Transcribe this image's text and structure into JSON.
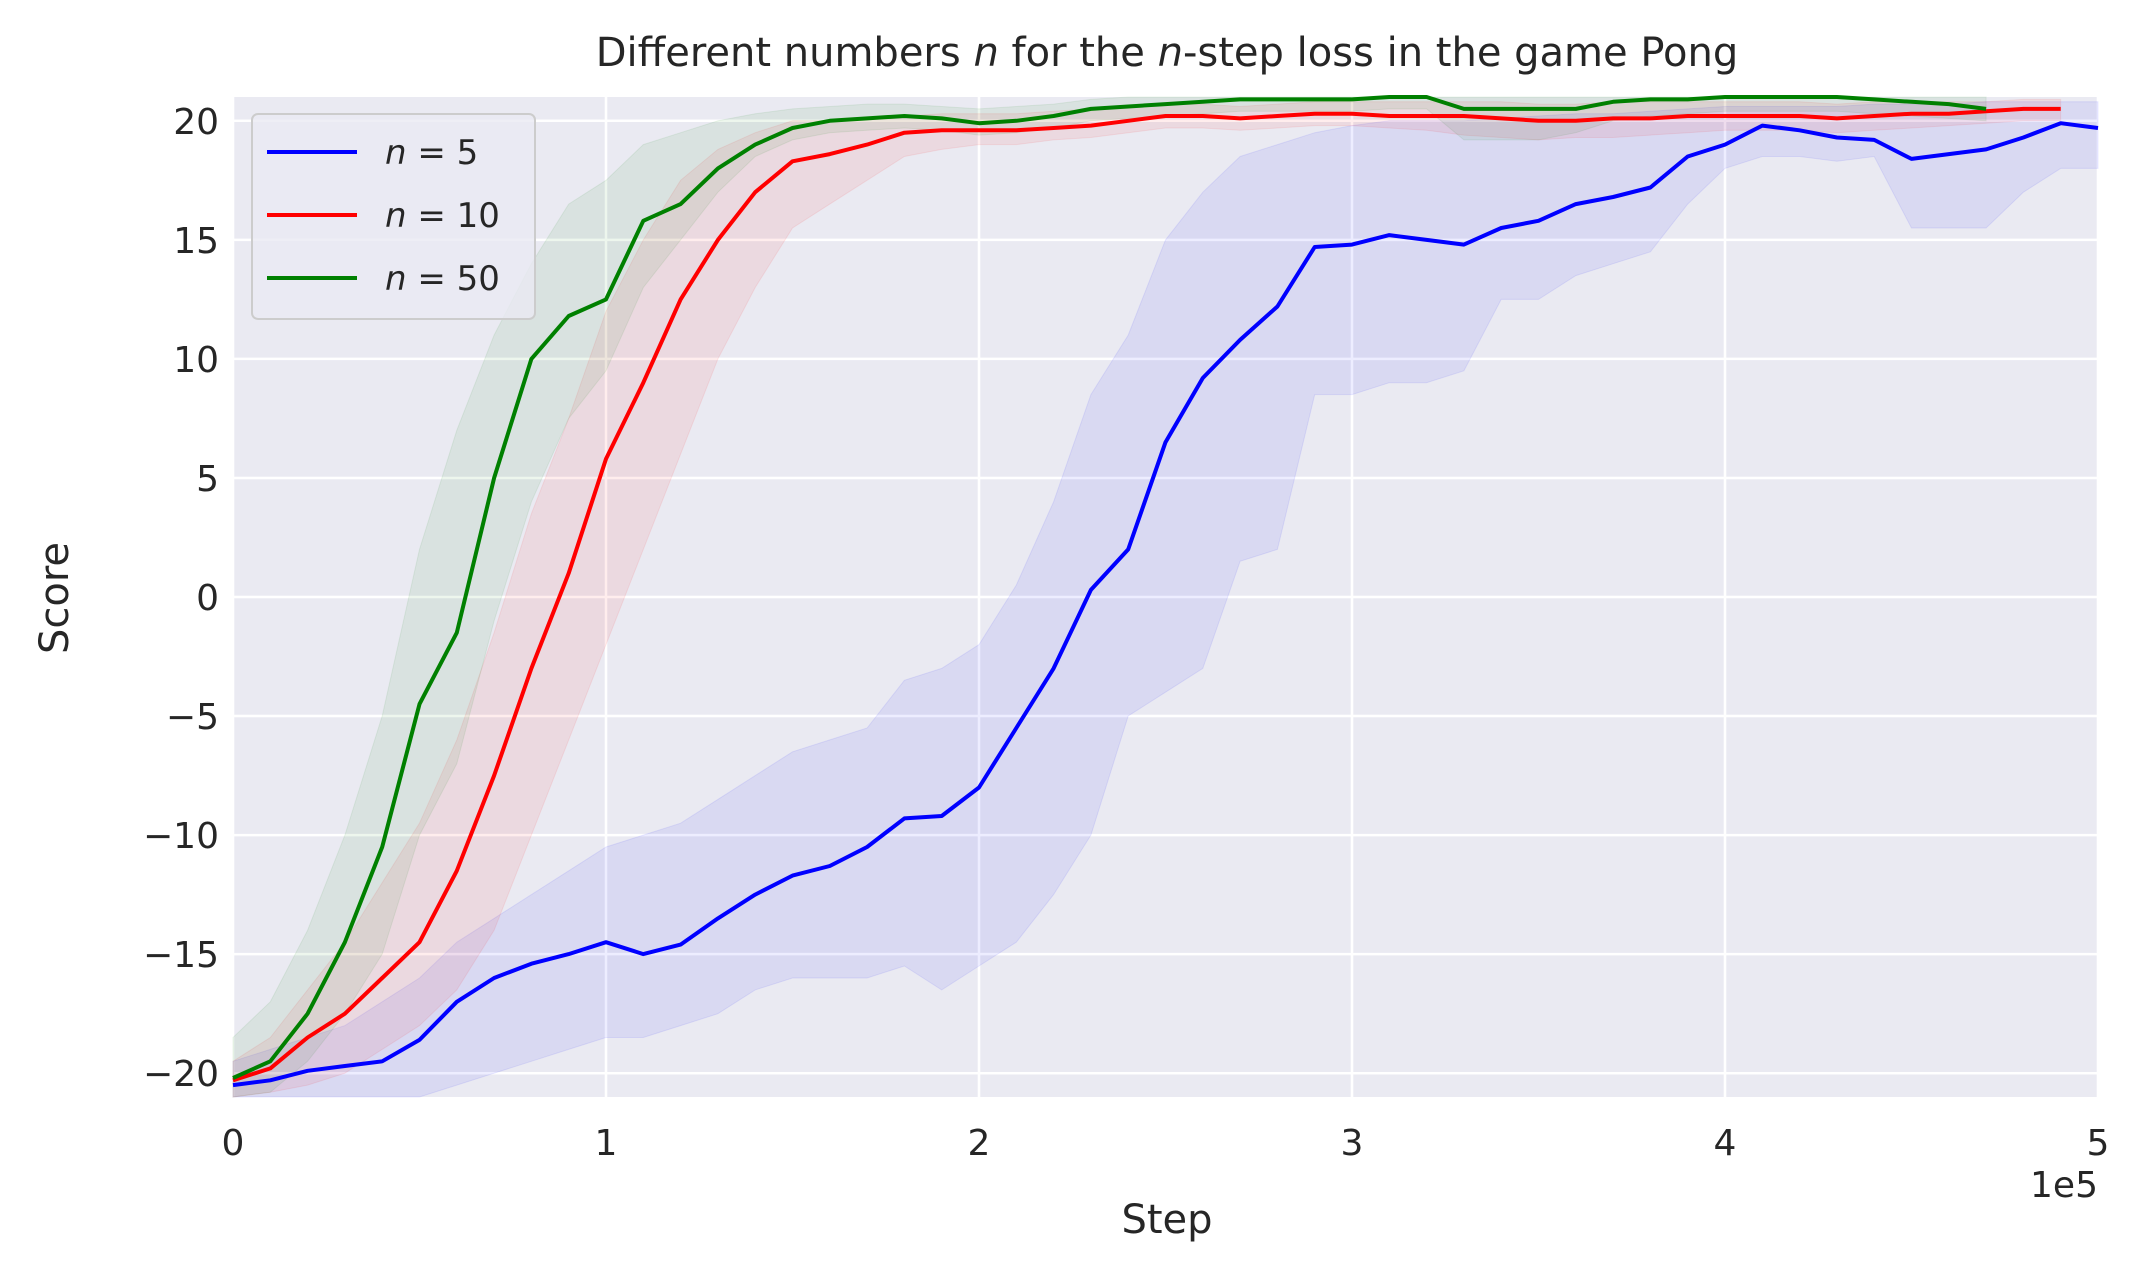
{
  "chart_data": {
    "type": "line",
    "title_parts": [
      {
        "text": "Different numbers ",
        "italic": false
      },
      {
        "text": "n",
        "italic": true
      },
      {
        "text": " for the ",
        "italic": false
      },
      {
        "text": "n",
        "italic": true
      },
      {
        "text": "-step loss in the game Pong",
        "italic": false
      }
    ],
    "xlabel": "Step",
    "ylabel": "Score",
    "x_offset_text": "1e5",
    "xlim": [
      0,
      500000
    ],
    "ylim": [
      -21,
      21
    ],
    "x_ticks": [
      0,
      100000,
      200000,
      300000,
      400000,
      500000
    ],
    "x_tick_labels": [
      "0",
      "1",
      "2",
      "3",
      "4",
      "5"
    ],
    "y_ticks": [
      -20,
      -15,
      -10,
      -5,
      0,
      5,
      10,
      15,
      20
    ],
    "y_tick_labels": [
      "−20",
      "−15",
      "−10",
      "−5",
      "0",
      "5",
      "10",
      "15",
      "20"
    ],
    "grid": true,
    "legend_position": "upper-left",
    "colors": {
      "plot_background": "#eaeaf2",
      "grid": "#ffffff",
      "n5": "#0000ff",
      "n10": "#ff0000",
      "n50": "#008000"
    },
    "series": [
      {
        "name": "n = 5",
        "name_parts": [
          {
            "text": "n",
            "italic": true
          },
          {
            "text": " = 5",
            "italic": false
          }
        ],
        "color": "#0000ff",
        "x": [
          0,
          10000,
          20000,
          30000,
          40000,
          50000,
          60000,
          70000,
          80000,
          90000,
          100000,
          110000,
          120000,
          130000,
          140000,
          150000,
          160000,
          170000,
          180000,
          190000,
          200000,
          210000,
          220000,
          230000,
          240000,
          250000,
          260000,
          270000,
          280000,
          290000,
          300000,
          310000,
          320000,
          330000,
          340000,
          350000,
          360000,
          370000,
          380000,
          390000,
          400000,
          410000,
          420000,
          430000,
          440000,
          450000,
          460000,
          470000,
          480000,
          490000,
          500000
        ],
        "y": [
          -20.5,
          -20.3,
          -19.9,
          -19.7,
          -19.5,
          -18.6,
          -17.0,
          -16.0,
          -15.4,
          -15.0,
          -14.5,
          -15.0,
          -14.6,
          -13.5,
          -12.5,
          -11.7,
          -11.3,
          -10.5,
          -9.3,
          -9.2,
          -8.0,
          -5.5,
          -3.0,
          0.3,
          2.0,
          6.5,
          9.2,
          10.8,
          12.2,
          14.7,
          14.8,
          15.2,
          15.0,
          14.8,
          15.5,
          15.8,
          16.5,
          16.8,
          17.2,
          18.5,
          19.0,
          19.8,
          19.6,
          19.3,
          19.2,
          18.4,
          18.6,
          18.8,
          19.3,
          19.9,
          19.7
        ],
        "lower": [
          -21,
          -21,
          -21,
          -21,
          -21,
          -21,
          -20.5,
          -20,
          -19.5,
          -19,
          -18.5,
          -18.5,
          -18,
          -17.5,
          -16.5,
          -16,
          -16,
          -16,
          -15.5,
          -16.5,
          -15.5,
          -14.5,
          -12.5,
          -10,
          -5,
          -4,
          -3,
          1.5,
          2,
          8.5,
          8.5,
          9,
          9,
          9.5,
          12.5,
          12.5,
          13.5,
          14,
          14.5,
          16.5,
          18,
          18.5,
          18.5,
          18.3,
          18.5,
          15.5,
          15.5,
          15.5,
          17,
          18,
          18
        ],
        "upper": [
          -19.5,
          -19,
          -18.5,
          -18,
          -17,
          -16,
          -14.5,
          -13.5,
          -12.5,
          -11.5,
          -10.5,
          -10,
          -9.5,
          -8.5,
          -7.5,
          -6.5,
          -6,
          -5.5,
          -3.5,
          -3,
          -2,
          0.5,
          4,
          8.5,
          11,
          15,
          17,
          18.5,
          19,
          19.5,
          19.8,
          20,
          20,
          20,
          20.1,
          20.2,
          20.3,
          20.3,
          20.4,
          20.5,
          20.6,
          20.6,
          20.6,
          20.6,
          20.7,
          20.7,
          20.7,
          20.8,
          20.8,
          20.8,
          20.8
        ]
      },
      {
        "name": "n = 10",
        "name_parts": [
          {
            "text": "n",
            "italic": true
          },
          {
            "text": " = 10",
            "italic": false
          }
        ],
        "color": "#ff0000",
        "x": [
          0,
          10000,
          20000,
          30000,
          40000,
          50000,
          60000,
          70000,
          80000,
          90000,
          100000,
          110000,
          120000,
          130000,
          140000,
          150000,
          160000,
          170000,
          180000,
          190000,
          200000,
          210000,
          220000,
          230000,
          240000,
          250000,
          260000,
          270000,
          280000,
          290000,
          300000,
          310000,
          320000,
          330000,
          340000,
          350000,
          360000,
          370000,
          380000,
          390000,
          400000,
          410000,
          420000,
          430000,
          440000,
          450000,
          460000,
          470000,
          480000,
          490000
        ],
        "y": [
          -20.3,
          -19.8,
          -18.5,
          -17.5,
          -16.0,
          -14.5,
          -11.5,
          -7.5,
          -3.0,
          1.0,
          5.8,
          9.0,
          12.5,
          15.0,
          17.0,
          18.3,
          18.6,
          19.0,
          19.5,
          19.6,
          19.6,
          19.6,
          19.7,
          19.8,
          20.0,
          20.2,
          20.2,
          20.1,
          20.2,
          20.3,
          20.3,
          20.2,
          20.2,
          20.2,
          20.1,
          20.0,
          20.0,
          20.1,
          20.1,
          20.2,
          20.2,
          20.2,
          20.2,
          20.1,
          20.2,
          20.3,
          20.3,
          20.4,
          20.5,
          20.5
        ],
        "lower": [
          -21,
          -20.8,
          -20.5,
          -20,
          -19,
          -18,
          -16.5,
          -14,
          -10,
          -6,
          -2,
          2,
          6,
          10,
          13,
          15.5,
          16.5,
          17.5,
          18.5,
          18.8,
          19,
          19,
          19.2,
          19.3,
          19.5,
          19.7,
          19.7,
          19.6,
          19.7,
          19.8,
          19.8,
          19.7,
          19.6,
          19.4,
          19.3,
          19.2,
          19.3,
          19.3,
          19.4,
          19.5,
          19.6,
          19.6,
          19.6,
          19.5,
          19.6,
          19.7,
          19.8,
          19.9,
          20,
          20
        ],
        "upper": [
          -19.5,
          -18.5,
          -16.5,
          -14.5,
          -12,
          -9.5,
          -6,
          -1.5,
          3.5,
          7.5,
          12,
          15,
          17.5,
          18.8,
          19.5,
          20,
          20,
          20.1,
          20.2,
          20.3,
          20.3,
          20.3,
          20.4,
          20.5,
          20.6,
          20.7,
          20.7,
          20.6,
          20.7,
          20.8,
          20.8,
          20.8,
          20.8,
          20.8,
          20.8,
          20.7,
          20.7,
          20.8,
          20.8,
          20.8,
          20.8,
          20.8,
          20.8,
          20.7,
          20.8,
          20.8,
          20.8,
          20.8,
          20.9,
          20.9
        ]
      },
      {
        "name": "n = 50",
        "name_parts": [
          {
            "text": "n",
            "italic": true
          },
          {
            "text": " = 50",
            "italic": false
          }
        ],
        "color": "#008000",
        "x": [
          0,
          10000,
          20000,
          30000,
          40000,
          50000,
          60000,
          70000,
          80000,
          90000,
          100000,
          110000,
          120000,
          130000,
          140000,
          150000,
          160000,
          170000,
          180000,
          190000,
          200000,
          210000,
          220000,
          230000,
          240000,
          250000,
          260000,
          270000,
          280000,
          290000,
          300000,
          310000,
          320000,
          330000,
          340000,
          350000,
          360000,
          370000,
          380000,
          390000,
          400000,
          410000,
          420000,
          430000,
          440000,
          450000,
          460000,
          470000
        ],
        "y": [
          -20.2,
          -19.5,
          -17.5,
          -14.5,
          -10.5,
          -4.5,
          -1.5,
          5.0,
          10.0,
          11.8,
          12.5,
          15.8,
          16.5,
          18.0,
          19.0,
          19.7,
          20.0,
          20.1,
          20.2,
          20.1,
          19.9,
          20.0,
          20.2,
          20.5,
          20.6,
          20.7,
          20.8,
          20.9,
          20.9,
          20.9,
          20.9,
          21.0,
          21.0,
          20.5,
          20.5,
          20.5,
          20.5,
          20.8,
          20.9,
          20.9,
          21.0,
          21.0,
          21.0,
          21.0,
          20.9,
          20.8,
          20.7,
          20.5
        ],
        "lower": [
          -21,
          -20.8,
          -19.5,
          -17.5,
          -15,
          -10,
          -7,
          -1,
          4,
          7.5,
          9.5,
          13,
          15,
          17,
          18.5,
          19.2,
          19.5,
          19.6,
          19.7,
          19.6,
          19.4,
          19.5,
          19.7,
          20,
          20.1,
          20.2,
          20.3,
          20.4,
          20.4,
          20.4,
          20.4,
          20.5,
          20.5,
          19.2,
          19.2,
          19.2,
          19.5,
          20,
          20.2,
          20.3,
          20.4,
          20.4,
          20.4,
          20.4,
          20.3,
          20.2,
          20.1,
          20
        ],
        "upper": [
          -18.5,
          -17,
          -14,
          -10,
          -5,
          2,
          7,
          11,
          14,
          16.5,
          17.5,
          19,
          19.5,
          20,
          20.3,
          20.5,
          20.6,
          20.7,
          20.7,
          20.6,
          20.5,
          20.6,
          20.7,
          20.9,
          21,
          21,
          21,
          21,
          21,
          21,
          21,
          21,
          21,
          21,
          21,
          21,
          21,
          21,
          21,
          21,
          21,
          21,
          21,
          21,
          21,
          21,
          21,
          21
        ]
      }
    ]
  }
}
